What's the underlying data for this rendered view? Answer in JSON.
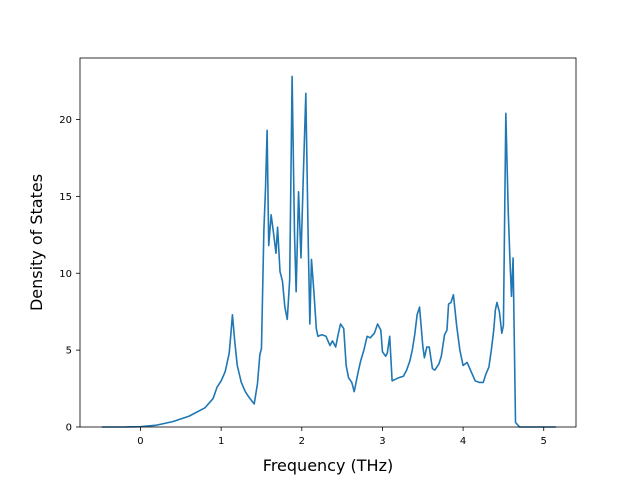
{
  "chart_data": {
    "type": "line",
    "title": "",
    "xlabel": "Frequency (THz)",
    "ylabel": "Density of States",
    "xlim": [
      -0.75,
      5.4
    ],
    "ylim": [
      0,
      24.0
    ],
    "xticks": [
      0,
      1,
      2,
      3,
      4,
      5
    ],
    "yticks": [
      0,
      5,
      10,
      15,
      20
    ],
    "grid": false,
    "line_color": "#1f77b4",
    "series": [
      {
        "x": [
          -0.48,
          -0.2,
          0.0,
          0.2,
          0.4,
          0.6,
          0.8,
          0.9,
          0.95,
          1.0,
          1.05,
          1.1,
          1.12,
          1.14,
          1.17,
          1.2,
          1.25,
          1.3,
          1.35,
          1.38,
          1.41,
          1.45,
          1.48,
          1.5,
          1.53,
          1.55,
          1.57,
          1.59,
          1.62,
          1.65,
          1.68,
          1.7,
          1.73,
          1.76,
          1.79,
          1.82,
          1.85,
          1.88,
          1.91,
          1.93,
          1.96,
          1.99,
          2.02,
          2.05,
          2.08,
          2.1,
          2.12,
          2.15,
          2.18,
          2.2,
          2.25,
          2.3,
          2.35,
          2.38,
          2.42,
          2.45,
          2.48,
          2.52,
          2.55,
          2.58,
          2.62,
          2.65,
          2.7,
          2.73,
          2.77,
          2.81,
          2.85,
          2.9,
          2.94,
          2.98,
          3.0,
          3.04,
          3.06,
          3.09,
          3.12,
          3.16,
          3.2,
          3.26,
          3.3,
          3.34,
          3.37,
          3.4,
          3.43,
          3.46,
          3.5,
          3.52,
          3.55,
          3.58,
          3.62,
          3.65,
          3.7,
          3.73,
          3.77,
          3.8,
          3.82,
          3.85,
          3.88,
          3.92,
          3.96,
          4.0,
          4.05,
          4.1,
          4.15,
          4.2,
          4.25,
          4.28,
          4.32,
          4.35,
          4.38,
          4.4,
          4.42,
          4.45,
          4.48,
          4.5,
          4.53,
          4.56,
          4.58,
          4.6,
          4.62,
          4.65,
          4.7,
          4.8,
          5.0,
          5.15
        ],
        "y": [
          0,
          0,
          0.02,
          0.12,
          0.35,
          0.7,
          1.25,
          1.85,
          2.6,
          3.0,
          3.6,
          4.8,
          6.0,
          7.3,
          5.5,
          4.0,
          2.9,
          2.3,
          1.9,
          1.7,
          1.5,
          2.8,
          4.7,
          5.1,
          12.8,
          15.5,
          19.3,
          11.8,
          13.8,
          12.6,
          11.3,
          13.0,
          10.1,
          9.5,
          7.8,
          7.0,
          9.6,
          22.8,
          12.5,
          8.8,
          15.3,
          11.0,
          16.5,
          21.7,
          12.0,
          6.7,
          10.9,
          8.8,
          6.4,
          5.9,
          6.0,
          5.9,
          5.3,
          5.6,
          5.2,
          6.0,
          6.7,
          6.4,
          4.0,
          3.2,
          2.9,
          2.3,
          3.6,
          4.3,
          5.0,
          5.9,
          5.8,
          6.1,
          6.7,
          6.3,
          4.9,
          4.6,
          4.8,
          5.9,
          3.0,
          3.1,
          3.2,
          3.3,
          3.7,
          4.3,
          5.0,
          6.0,
          7.3,
          7.8,
          5.3,
          4.5,
          5.2,
          5.2,
          3.8,
          3.7,
          4.1,
          4.6,
          6.0,
          6.3,
          8.0,
          8.1,
          8.6,
          6.6,
          5.0,
          4.0,
          4.2,
          3.6,
          3.0,
          2.9,
          2.9,
          3.4,
          3.9,
          5.0,
          6.3,
          7.6,
          8.1,
          7.5,
          6.1,
          6.6,
          20.4,
          14.0,
          11.0,
          8.5,
          11.0,
          0.3,
          0,
          0,
          0,
          0
        ]
      }
    ]
  }
}
